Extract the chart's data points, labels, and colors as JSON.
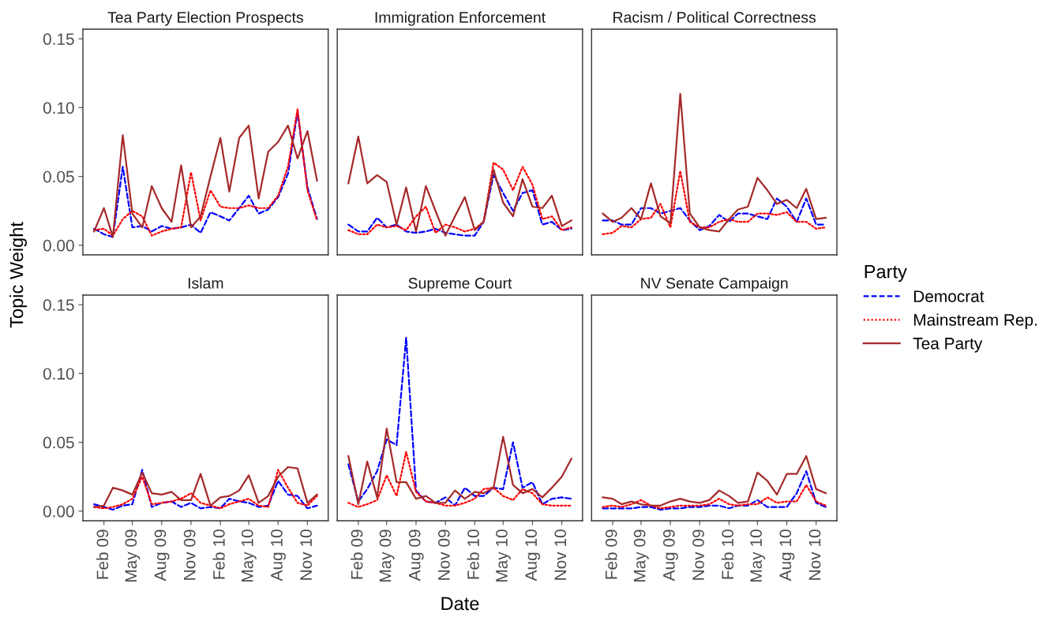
{
  "chart_data": [
    {
      "type": "line",
      "title": "Tea Party Election Prospects",
      "ylabel": "Topic Weight",
      "legend": "right",
      "legend_title": "Party",
      "tick_labels": "y",
      "grid": false,
      "x": [
        "2009-01",
        "2009-02",
        "2009-03",
        "2009-04",
        "2009-05",
        "2009-06",
        "2009-07",
        "2009-08",
        "2009-09",
        "2009-10",
        "2009-11",
        "2009-12",
        "2010-01",
        "2010-02",
        "2010-03",
        "2010-04",
        "2010-05",
        "2010-06",
        "2010-07",
        "2010-08",
        "2010-09",
        "2010-10",
        "2010-11",
        "2010-12"
      ],
      "xlim": [
        "2008-11-27",
        "2011-01-05"
      ],
      "ylim": [
        -0.007,
        0.157
      ],
      "yticks": [
        {
          "value": 0,
          "label": "0.00"
        },
        {
          "value": 0.05,
          "label": "0.05"
        },
        {
          "value": 0.1,
          "label": "0.10"
        },
        {
          "value": 0.15,
          "label": "0.15"
        }
      ],
      "series": [
        {
          "name": "Democrat",
          "color": "#0000ff",
          "line_style": "dashed",
          "values": [
            0.012,
            0.008,
            0.006,
            0.057,
            0.013,
            0.014,
            0.01,
            0.014,
            0.012,
            0.013,
            0.015,
            0.009,
            0.024,
            0.021,
            0.018,
            0.027,
            0.036,
            0.023,
            0.026,
            0.035,
            0.052,
            0.097,
            0.042,
            0.019
          ]
        },
        {
          "name": "Mainstream Rep.",
          "color": "#ff0000",
          "line_style": "dotted",
          "values": [
            0.011,
            0.012,
            0.007,
            0.019,
            0.025,
            0.021,
            0.007,
            0.01,
            0.012,
            0.013,
            0.053,
            0.018,
            0.04,
            0.028,
            0.027,
            0.027,
            0.029,
            0.027,
            0.027,
            0.036,
            0.057,
            0.099,
            0.04,
            0.018
          ]
        },
        {
          "name": "Tea Party",
          "color": "#a52a2a",
          "line_style": "solid",
          "values": [
            0.01,
            0.027,
            0.006,
            0.08,
            0.023,
            0.013,
            0.043,
            0.027,
            0.017,
            0.058,
            0.013,
            0.021,
            0.05,
            0.078,
            0.039,
            0.078,
            0.087,
            0.034,
            0.068,
            0.075,
            0.087,
            0.063,
            0.083,
            0.047
          ]
        }
      ]
    },
    {
      "type": "line",
      "title": "Immigration Enforcement",
      "tick_labels": false,
      "grid": false,
      "x": [
        "2009-01",
        "2009-02",
        "2009-03",
        "2009-04",
        "2009-05",
        "2009-06",
        "2009-07",
        "2009-08",
        "2009-09",
        "2009-10",
        "2009-11",
        "2009-12",
        "2010-01",
        "2010-02",
        "2010-03",
        "2010-04",
        "2010-05",
        "2010-06",
        "2010-07",
        "2010-08",
        "2010-09",
        "2010-10",
        "2010-11",
        "2010-12"
      ],
      "xlim": [
        "2008-11-27",
        "2011-01-05"
      ],
      "ylim": [
        -0.007,
        0.157
      ],
      "series": [
        {
          "color": "#0000ff",
          "line_style": "dashed",
          "values": [
            0.015,
            0.01,
            0.01,
            0.02,
            0.013,
            0.015,
            0.01,
            0.009,
            0.01,
            0.012,
            0.009,
            0.008,
            0.007,
            0.007,
            0.017,
            0.051,
            0.038,
            0.025,
            0.038,
            0.04,
            0.015,
            0.017,
            0.011,
            0.012
          ]
        },
        {
          "color": "#ff0000",
          "line_style": "dotted",
          "values": [
            0.011,
            0.008,
            0.008,
            0.015,
            0.013,
            0.014,
            0.011,
            0.021,
            0.028,
            0.009,
            0.015,
            0.013,
            0.01,
            0.012,
            0.017,
            0.06,
            0.055,
            0.04,
            0.057,
            0.044,
            0.019,
            0.021,
            0.011,
            0.013
          ]
        },
        {
          "color": "#a52a2a",
          "line_style": "solid",
          "values": [
            0.045,
            0.079,
            0.045,
            0.051,
            0.046,
            0.015,
            0.042,
            0.01,
            0.043,
            0.025,
            0.007,
            0.021,
            0.035,
            0.011,
            0.017,
            0.055,
            0.031,
            0.021,
            0.048,
            0.028,
            0.027,
            0.036,
            0.014,
            0.018
          ]
        }
      ]
    },
    {
      "type": "line",
      "title": "Racism / Political Correctness",
      "tick_labels": false,
      "grid": false,
      "x": [
        "2009-01",
        "2009-02",
        "2009-03",
        "2009-04",
        "2009-05",
        "2009-06",
        "2009-07",
        "2009-08",
        "2009-09",
        "2009-10",
        "2009-11",
        "2009-12",
        "2010-01",
        "2010-02",
        "2010-03",
        "2010-04",
        "2010-05",
        "2010-06",
        "2010-07",
        "2010-08",
        "2010-09",
        "2010-10",
        "2010-11",
        "2010-12"
      ],
      "xlim": [
        "2008-11-27",
        "2011-01-05"
      ],
      "ylim": [
        -0.007,
        0.157
      ],
      "series": [
        {
          "color": "#0000ff",
          "line_style": "dashed",
          "values": [
            0.018,
            0.018,
            0.015,
            0.015,
            0.027,
            0.027,
            0.023,
            0.025,
            0.027,
            0.018,
            0.011,
            0.014,
            0.022,
            0.017,
            0.023,
            0.023,
            0.021,
            0.019,
            0.034,
            0.028,
            0.017,
            0.034,
            0.015,
            0.015
          ]
        },
        {
          "color": "#ff0000",
          "line_style": "dotted",
          "values": [
            0.008,
            0.009,
            0.014,
            0.013,
            0.019,
            0.02,
            0.03,
            0.013,
            0.054,
            0.017,
            0.013,
            0.013,
            0.017,
            0.019,
            0.017,
            0.017,
            0.023,
            0.023,
            0.022,
            0.024,
            0.017,
            0.017,
            0.012,
            0.013
          ]
        },
        {
          "color": "#a52a2a",
          "line_style": "solid",
          "values": [
            0.023,
            0.017,
            0.02,
            0.027,
            0.019,
            0.045,
            0.021,
            0.016,
            0.11,
            0.023,
            0.013,
            0.011,
            0.01,
            0.019,
            0.026,
            0.028,
            0.049,
            0.04,
            0.03,
            0.033,
            0.027,
            0.041,
            0.019,
            0.02
          ]
        }
      ]
    },
    {
      "type": "line",
      "title": "Islam",
      "grid": false,
      "x": [
        "2009-01",
        "2009-02",
        "2009-03",
        "2009-04",
        "2009-05",
        "2009-06",
        "2009-07",
        "2009-08",
        "2009-09",
        "2009-10",
        "2009-11",
        "2009-12",
        "2010-01",
        "2010-02",
        "2010-03",
        "2010-04",
        "2010-05",
        "2010-06",
        "2010-07",
        "2010-08",
        "2010-09",
        "2010-10",
        "2010-11",
        "2010-12"
      ],
      "xlim": [
        "2008-11-27",
        "2011-01-05"
      ],
      "ylim": [
        -0.007,
        0.157
      ],
      "xticks": [
        {
          "value": "2009-02-01",
          "label": "Feb 09"
        },
        {
          "value": "2009-05-01",
          "label": "May 09"
        },
        {
          "value": "2009-08-01",
          "label": "Aug 09"
        },
        {
          "value": "2009-11-01",
          "label": "Nov 09"
        },
        {
          "value": "2010-02-01",
          "label": "Feb 10"
        },
        {
          "value": "2010-05-01",
          "label": "May 10"
        },
        {
          "value": "2010-08-01",
          "label": "Aug 10"
        },
        {
          "value": "2010-11-01",
          "label": "Nov 10"
        }
      ],
      "yticks": [
        {
          "value": 0,
          "label": "0.00"
        },
        {
          "value": 0.05,
          "label": "0.05"
        },
        {
          "value": 0.1,
          "label": "0.10"
        },
        {
          "value": 0.15,
          "label": "0.15"
        }
      ],
      "series": [
        {
          "color": "#0000ff",
          "line_style": "dashed",
          "values": [
            0.005,
            0.003,
            0.001,
            0.004,
            0.005,
            0.03,
            0.003,
            0.006,
            0.007,
            0.003,
            0.006,
            0.002,
            0.003,
            0.002,
            0.009,
            0.007,
            0.006,
            0.003,
            0.004,
            0.022,
            0.012,
            0.011,
            0.002,
            0.004
          ]
        },
        {
          "color": "#ff0000",
          "line_style": "dotted",
          "values": [
            0.003,
            0.002,
            0.003,
            0.005,
            0.009,
            0.025,
            0.005,
            0.006,
            0.007,
            0.009,
            0.013,
            0.006,
            0.004,
            0.002,
            0.005,
            0.007,
            0.009,
            0.004,
            0.003,
            0.03,
            0.017,
            0.006,
            0.004,
            0.011
          ]
        },
        {
          "color": "#a52a2a",
          "line_style": "solid",
          "values": [
            0.003,
            0.004,
            0.017,
            0.015,
            0.012,
            0.028,
            0.013,
            0.012,
            0.014,
            0.008,
            0.008,
            0.027,
            0.004,
            0.01,
            0.011,
            0.015,
            0.026,
            0.006,
            0.011,
            0.025,
            0.032,
            0.031,
            0.006,
            0.012
          ]
        }
      ]
    },
    {
      "type": "line",
      "title": "Supreme Court",
      "xlabel": "Date",
      "tick_labels": "x",
      "grid": false,
      "x": [
        "2009-01",
        "2009-02",
        "2009-03",
        "2009-04",
        "2009-05",
        "2009-06",
        "2009-07",
        "2009-08",
        "2009-09",
        "2009-10",
        "2009-11",
        "2009-12",
        "2010-01",
        "2010-02",
        "2010-03",
        "2010-04",
        "2010-05",
        "2010-06",
        "2010-07",
        "2010-08",
        "2010-09",
        "2010-10",
        "2010-11",
        "2010-12"
      ],
      "xlim": [
        "2008-11-27",
        "2011-01-05"
      ],
      "ylim": [
        -0.007,
        0.157
      ],
      "xticks": [
        {
          "value": "2009-02-01",
          "label": "Feb 09"
        },
        {
          "value": "2009-05-01",
          "label": "May 09"
        },
        {
          "value": "2009-08-01",
          "label": "Aug 09"
        },
        {
          "value": "2009-11-01",
          "label": "Nov 09"
        },
        {
          "value": "2010-02-01",
          "label": "Feb 10"
        },
        {
          "value": "2010-05-01",
          "label": "May 10"
        },
        {
          "value": "2010-08-01",
          "label": "Aug 10"
        },
        {
          "value": "2010-11-01",
          "label": "Nov 10"
        }
      ],
      "series": [
        {
          "color": "#0000ff",
          "line_style": "dashed",
          "values": [
            0.034,
            0.007,
            0.016,
            0.029,
            0.052,
            0.048,
            0.126,
            0.015,
            0.007,
            0.006,
            0.01,
            0.004,
            0.017,
            0.011,
            0.011,
            0.017,
            0.016,
            0.05,
            0.017,
            0.021,
            0.005,
            0.009,
            0.01,
            0.009
          ]
        },
        {
          "color": "#ff0000",
          "line_style": "dotted",
          "values": [
            0.006,
            0.003,
            0.005,
            0.008,
            0.026,
            0.011,
            0.043,
            0.014,
            0.007,
            0.006,
            0.004,
            0.004,
            0.006,
            0.009,
            0.016,
            0.017,
            0.011,
            0.008,
            0.016,
            0.013,
            0.005,
            0.004,
            0.004,
            0.004
          ]
        },
        {
          "color": "#a52a2a",
          "line_style": "solid",
          "values": [
            0.04,
            0.005,
            0.036,
            0.01,
            0.06,
            0.021,
            0.021,
            0.009,
            0.011,
            0.006,
            0.006,
            0.015,
            0.009,
            0.014,
            0.013,
            0.017,
            0.054,
            0.019,
            0.013,
            0.016,
            0.01,
            0.017,
            0.025,
            0.038
          ]
        }
      ]
    },
    {
      "type": "line",
      "title": "NV Senate Campaign",
      "tick_labels": "x",
      "grid": false,
      "x": [
        "2009-01",
        "2009-02",
        "2009-03",
        "2009-04",
        "2009-05",
        "2009-06",
        "2009-07",
        "2009-08",
        "2009-09",
        "2009-10",
        "2009-11",
        "2009-12",
        "2010-01",
        "2010-02",
        "2010-03",
        "2010-04",
        "2010-05",
        "2010-06",
        "2010-07",
        "2010-08",
        "2010-09",
        "2010-10",
        "2010-11",
        "2010-12"
      ],
      "xlim": [
        "2008-11-27",
        "2011-01-05"
      ],
      "ylim": [
        -0.007,
        0.157
      ],
      "xticks": [
        {
          "value": "2009-02-01",
          "label": "Feb 09"
        },
        {
          "value": "2009-05-01",
          "label": "May 09"
        },
        {
          "value": "2009-08-01",
          "label": "Aug 09"
        },
        {
          "value": "2009-11-01",
          "label": "Nov 09"
        },
        {
          "value": "2010-02-01",
          "label": "Feb 10"
        },
        {
          "value": "2010-05-01",
          "label": "May 10"
        },
        {
          "value": "2010-08-01",
          "label": "Aug 10"
        },
        {
          "value": "2010-11-01",
          "label": "Nov 10"
        }
      ],
      "series": [
        {
          "color": "#0000ff",
          "line_style": "dashed",
          "values": [
            0.002,
            0.002,
            0.002,
            0.002,
            0.003,
            0.003,
            0.001,
            0.002,
            0.002,
            0.003,
            0.003,
            0.004,
            0.004,
            0.002,
            0.004,
            0.004,
            0.008,
            0.003,
            0.003,
            0.003,
            0.013,
            0.029,
            0.006,
            0.003
          ]
        },
        {
          "color": "#ff0000",
          "line_style": "dotted",
          "values": [
            0.003,
            0.004,
            0.003,
            0.005,
            0.008,
            0.004,
            0.002,
            0.003,
            0.004,
            0.004,
            0.004,
            0.005,
            0.009,
            0.005,
            0.004,
            0.005,
            0.005,
            0.01,
            0.006,
            0.007,
            0.007,
            0.019,
            0.007,
            0.004
          ]
        },
        {
          "color": "#a52a2a",
          "line_style": "solid",
          "values": [
            0.01,
            0.009,
            0.005,
            0.007,
            0.005,
            0.004,
            0.004,
            0.007,
            0.009,
            0.007,
            0.006,
            0.008,
            0.015,
            0.011,
            0.006,
            0.007,
            0.028,
            0.022,
            0.012,
            0.027,
            0.027,
            0.04,
            0.016,
            0.013
          ]
        }
      ]
    }
  ]
}
